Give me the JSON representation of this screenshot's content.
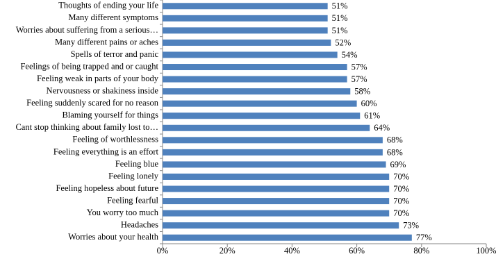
{
  "chart_data": {
    "type": "barh",
    "categories": [
      "Thoughts of ending your life",
      "Many different symptoms",
      "Worries about suffering from a serious…",
      "Many different pains or aches",
      "Spells of terror and panic",
      "Feelings of being trapped and or caught",
      "Feeling weak in parts of your body",
      "Nervousness or shakiness inside",
      "Feeling suddenly scared for no reason",
      "Blaming yourself for things",
      "Cant stop thinking about family lost to…",
      "Feeling of worthlessness",
      "Feeling everything is an effort",
      "Feeling blue",
      "Feeling lonely",
      "Feeling hopeless about future",
      "Feeling fearful",
      "You worry too much",
      "Headaches",
      "Worries about your health"
    ],
    "values": [
      51,
      51,
      51,
      52,
      54,
      57,
      57,
      58,
      60,
      61,
      64,
      68,
      68,
      69,
      70,
      70,
      70,
      70,
      73,
      77
    ],
    "value_labels": [
      "51%",
      "51%",
      "51%",
      "52%",
      "54%",
      "57%",
      "57%",
      "58%",
      "60%",
      "61%",
      "64%",
      "68%",
      "68%",
      "69%",
      "70%",
      "70%",
      "70%",
      "70%",
      "73%",
      "77%"
    ],
    "color": "#4f81bd",
    "xlim": [
      0,
      100
    ],
    "xticks": [
      {
        "value": 0,
        "label": "0%"
      },
      {
        "value": 20,
        "label": "20%"
      },
      {
        "value": 40,
        "label": "40%"
      },
      {
        "value": 60,
        "label": "60%"
      },
      {
        "value": 80,
        "label": "80%"
      },
      {
        "value": 100,
        "label": "100%"
      }
    ],
    "grid": false
  }
}
